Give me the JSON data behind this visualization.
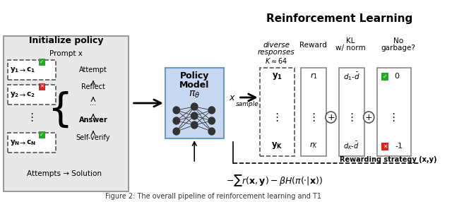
{
  "title": "Reinforcement Learning",
  "left_title": "Initialize policy",
  "caption": "Figure 2: The overall pipeline of reinforcement learning and T1",
  "bg_color": "#f5f5ff",
  "policy_box_color": "#c8d8f0",
  "left_bg_color": "#e8e8e8",
  "fig_width": 6.4,
  "fig_height": 2.86
}
